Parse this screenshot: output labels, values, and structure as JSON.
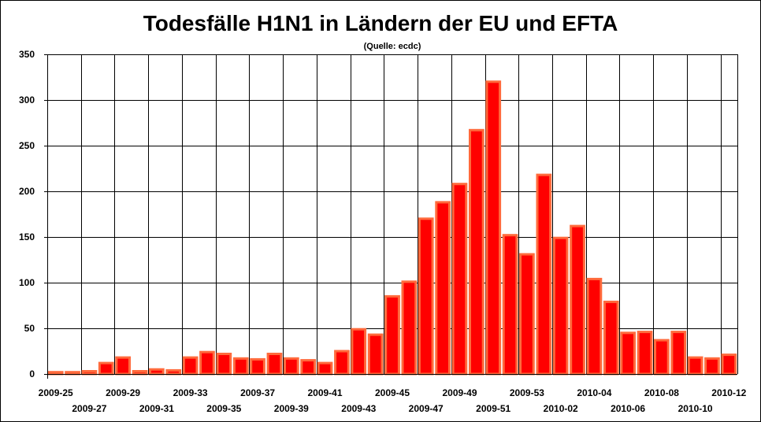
{
  "chart_data": {
    "type": "bar",
    "title": "Todesfälle H1N1 in Ländern der EU und EFTA",
    "subtitle": "(Quelle: ecdc)",
    "xlabel": "",
    "ylabel": "",
    "ylim": [
      0,
      350
    ],
    "yticks": [
      0,
      50,
      100,
      150,
      200,
      250,
      300,
      350
    ],
    "grid": true,
    "bar_fill": "#ff0000",
    "bar_border": "#ff6a3c",
    "categories": [
      "2009-25",
      "2009-26",
      "2009-27",
      "2009-28",
      "2009-29",
      "2009-30",
      "2009-31",
      "2009-32",
      "2009-33",
      "2009-34",
      "2009-35",
      "2009-36",
      "2009-37",
      "2009-38",
      "2009-39",
      "2009-40",
      "2009-41",
      "2009-42",
      "2009-43",
      "2009-44",
      "2009-45",
      "2009-46",
      "2009-47",
      "2009-48",
      "2009-49",
      "2009-50",
      "2009-51",
      "2009-52",
      "2009-53",
      "2010-01",
      "2010-02",
      "2010-03",
      "2010-04",
      "2010-05",
      "2010-06",
      "2010-07",
      "2010-08",
      "2010-09",
      "2010-10",
      "2010-11",
      "2010-12"
    ],
    "values": [
      2,
      2,
      3,
      12,
      18,
      3,
      5,
      4,
      18,
      24,
      22,
      17,
      16,
      22,
      17,
      15,
      12,
      25,
      49,
      43,
      85,
      101,
      170,
      188,
      208,
      267,
      320,
      152,
      131,
      218,
      149,
      162,
      104,
      79,
      45,
      46,
      37,
      46,
      18,
      17,
      21
    ],
    "xtick_labels_upper": [
      {
        "index": 0,
        "label": "2009-25"
      },
      {
        "index": 4,
        "label": "2009-29"
      },
      {
        "index": 8,
        "label": "2009-33"
      },
      {
        "index": 12,
        "label": "2009-37"
      },
      {
        "index": 16,
        "label": "2009-41"
      },
      {
        "index": 20,
        "label": "2009-45"
      },
      {
        "index": 24,
        "label": "2009-49"
      },
      {
        "index": 28,
        "label": "2009-53"
      },
      {
        "index": 32,
        "label": "2010-04"
      },
      {
        "index": 36,
        "label": "2010-08"
      },
      {
        "index": 40,
        "label": "2010-12"
      }
    ],
    "xtick_labels_lower": [
      {
        "index": 2,
        "label": "2009-27"
      },
      {
        "index": 6,
        "label": "2009-31"
      },
      {
        "index": 10,
        "label": "2009-35"
      },
      {
        "index": 14,
        "label": "2009-39"
      },
      {
        "index": 18,
        "label": "2009-43"
      },
      {
        "index": 22,
        "label": "2009-47"
      },
      {
        "index": 26,
        "label": "2009-51"
      },
      {
        "index": 30,
        "label": "2010-02"
      },
      {
        "index": 34,
        "label": "2010-06"
      },
      {
        "index": 38,
        "label": "2010-10"
      }
    ]
  }
}
